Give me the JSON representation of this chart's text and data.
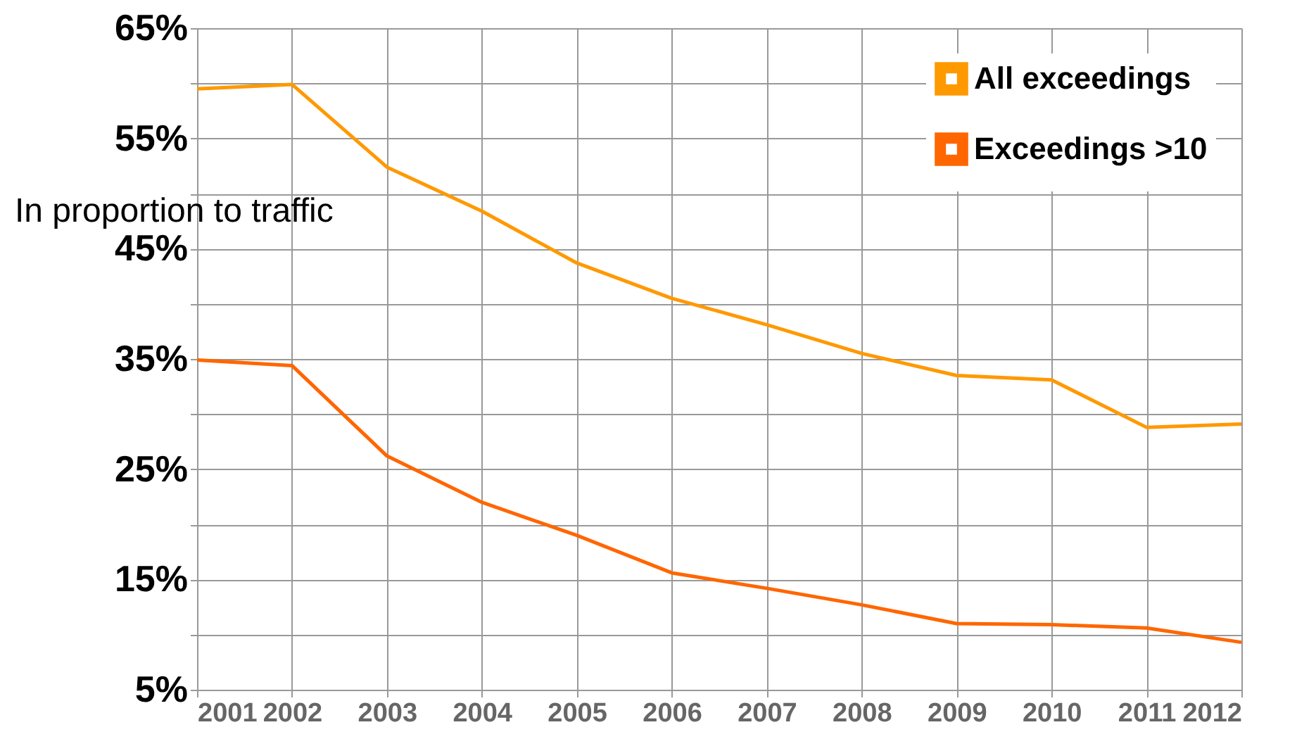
{
  "chart_data": {
    "type": "line",
    "ylabel": "In proportion to traffic",
    "x": [
      2001,
      2002,
      2003,
      2004,
      2005,
      2006,
      2007,
      2008,
      2009,
      2010,
      2011,
      2012
    ],
    "series": [
      {
        "name": "All exceedings",
        "color": "#ff9900",
        "values": [
          59.5,
          59.9,
          52.4,
          48.4,
          43.7,
          40.5,
          38.1,
          35.5,
          33.5,
          33.1,
          28.8,
          29.1
        ]
      },
      {
        "name": "Exceedings >10",
        "color": "#ff6600",
        "values": [
          34.9,
          34.4,
          26.2,
          22.0,
          19.0,
          15.6,
          14.2,
          12.7,
          11.0,
          10.9,
          10.6,
          9.3
        ]
      }
    ],
    "xlim": [
      2001,
      2012
    ],
    "xticks": [
      2001,
      2002,
      2003,
      2004,
      2005,
      2006,
      2007,
      2008,
      2009,
      2010,
      2011,
      2012
    ],
    "ylim": [
      5,
      65
    ],
    "yticks": [
      {
        "value": 5,
        "label": "5%"
      },
      {
        "value": 10,
        "label": null
      },
      {
        "value": 15,
        "label": "15%"
      },
      {
        "value": 20,
        "label": null
      },
      {
        "value": 25,
        "label": "25%"
      },
      {
        "value": 30,
        "label": null
      },
      {
        "value": 35,
        "label": "35%"
      },
      {
        "value": 40,
        "label": null
      },
      {
        "value": 45,
        "label": "45%"
      },
      {
        "value": 50,
        "label": null
      },
      {
        "value": 55,
        "label": "55%"
      },
      {
        "value": 60,
        "label": null
      },
      {
        "value": 65,
        "label": "65%"
      }
    ],
    "grid": true,
    "legend": "top right",
    "marker": "none",
    "line_style": "solid"
  }
}
